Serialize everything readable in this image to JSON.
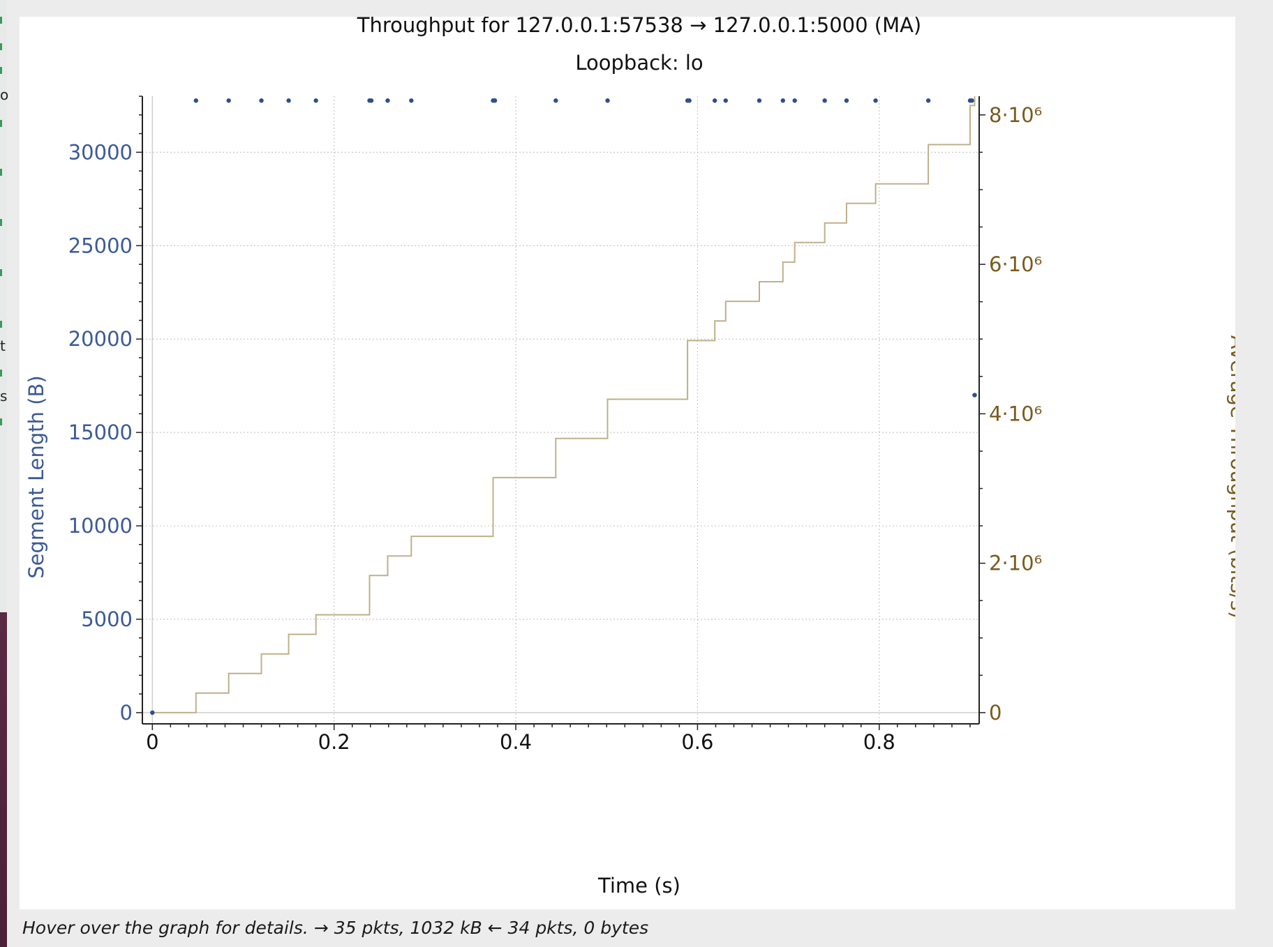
{
  "chart_data": {
    "type": "scatter",
    "title": "Throughput for 127.0.0.1:57538 → 127.0.0.1:5000 (MA)",
    "subtitle": "Loopback: lo",
    "xlabel": "Time (s)",
    "ylabel_left": "Segment Length (B)",
    "ylabel_right": "Average Throughput (bits/s)",
    "xlim": [
      -0.011,
      0.91
    ],
    "ylim_left": [
      -600,
      33000
    ],
    "ylim_right": [
      -150000,
      8250000
    ],
    "x_ticks": [
      {
        "v": 0,
        "label": "0"
      },
      {
        "v": 0.2,
        "label": "0.2"
      },
      {
        "v": 0.4,
        "label": "0.4"
      },
      {
        "v": 0.6,
        "label": "0.6"
      },
      {
        "v": 0.8,
        "label": "0.8"
      }
    ],
    "y_left_ticks": [
      {
        "v": 0,
        "label": "0"
      },
      {
        "v": 5000,
        "label": "5000"
      },
      {
        "v": 10000,
        "label": "10000"
      },
      {
        "v": 15000,
        "label": "15000"
      },
      {
        "v": 20000,
        "label": "20000"
      },
      {
        "v": 25000,
        "label": "25000"
      },
      {
        "v": 30000,
        "label": "30000"
      }
    ],
    "y_right_ticks": [
      {
        "v": 0,
        "label": "0"
      },
      {
        "v": 2000000,
        "label": "2·10⁶"
      },
      {
        "v": 4000000,
        "label": "4·10⁶"
      },
      {
        "v": 6000000,
        "label": "6·10⁶"
      },
      {
        "v": 8000000,
        "label": "8·10⁶"
      }
    ],
    "grid": true,
    "colors": {
      "segments": "#2d4f8e",
      "throughput": "#bfb08a",
      "left_axis_text": "#3c5a96",
      "right_axis_text": "#7a5a1e",
      "grid": "#c8c8c8"
    },
    "series": [
      {
        "name": "Segment Length (B)",
        "type": "scatter",
        "axis": "left",
        "points": [
          [
            0.0,
            0
          ],
          [
            0.048,
            32768
          ],
          [
            0.084,
            32768
          ],
          [
            0.12,
            32768
          ],
          [
            0.15,
            32768
          ],
          [
            0.18,
            32768
          ],
          [
            0.239,
            32768
          ],
          [
            0.241,
            32768
          ],
          [
            0.259,
            32768
          ],
          [
            0.285,
            32768
          ],
          [
            0.375,
            32768
          ],
          [
            0.377,
            32768
          ],
          [
            0.444,
            32768
          ],
          [
            0.501,
            32768
          ],
          [
            0.589,
            32768
          ],
          [
            0.591,
            32768
          ],
          [
            0.619,
            32768
          ],
          [
            0.631,
            32768
          ],
          [
            0.668,
            32768
          ],
          [
            0.694,
            32768
          ],
          [
            0.707,
            32768
          ],
          [
            0.74,
            32768
          ],
          [
            0.764,
            32768
          ],
          [
            0.796,
            32768
          ],
          [
            0.854,
            32768
          ],
          [
            0.9,
            32768
          ],
          [
            0.902,
            32768
          ],
          [
            0.905,
            17000
          ]
        ]
      },
      {
        "name": "Average Throughput (bits/s)",
        "type": "step",
        "axis": "right",
        "points": [
          [
            0.0,
            0
          ],
          [
            0.048,
            0
          ],
          [
            0.048,
            262000
          ],
          [
            0.084,
            262000
          ],
          [
            0.084,
            524000
          ],
          [
            0.12,
            524000
          ],
          [
            0.12,
            786000
          ],
          [
            0.15,
            786000
          ],
          [
            0.15,
            1048000
          ],
          [
            0.18,
            1048000
          ],
          [
            0.18,
            1310000
          ],
          [
            0.239,
            1310000
          ],
          [
            0.239,
            1835000
          ],
          [
            0.259,
            1835000
          ],
          [
            0.259,
            2097000
          ],
          [
            0.285,
            2097000
          ],
          [
            0.285,
            2360000
          ],
          [
            0.375,
            2360000
          ],
          [
            0.375,
            3146000
          ],
          [
            0.444,
            3146000
          ],
          [
            0.444,
            3670000
          ],
          [
            0.501,
            3670000
          ],
          [
            0.501,
            4195000
          ],
          [
            0.589,
            4195000
          ],
          [
            0.589,
            4980000
          ],
          [
            0.619,
            4980000
          ],
          [
            0.619,
            5243000
          ],
          [
            0.631,
            5243000
          ],
          [
            0.631,
            5505000
          ],
          [
            0.668,
            5505000
          ],
          [
            0.668,
            5767000
          ],
          [
            0.694,
            5767000
          ],
          [
            0.694,
            6030000
          ],
          [
            0.707,
            6030000
          ],
          [
            0.707,
            6292000
          ],
          [
            0.74,
            6292000
          ],
          [
            0.74,
            6554000
          ],
          [
            0.764,
            6554000
          ],
          [
            0.764,
            6816000
          ],
          [
            0.796,
            6816000
          ],
          [
            0.796,
            7078000
          ],
          [
            0.854,
            7078000
          ],
          [
            0.854,
            7602000
          ],
          [
            0.9,
            7602000
          ],
          [
            0.9,
            8126000
          ],
          [
            0.905,
            8126000
          ],
          [
            0.905,
            8250000
          ]
        ]
      }
    ]
  },
  "status": {
    "hint": "Hover over the graph for details. → 35 pkts, 1032 kB ← 34 pkts, 0 bytes"
  },
  "left_fragments": [
    "o",
    "t",
    "s"
  ]
}
